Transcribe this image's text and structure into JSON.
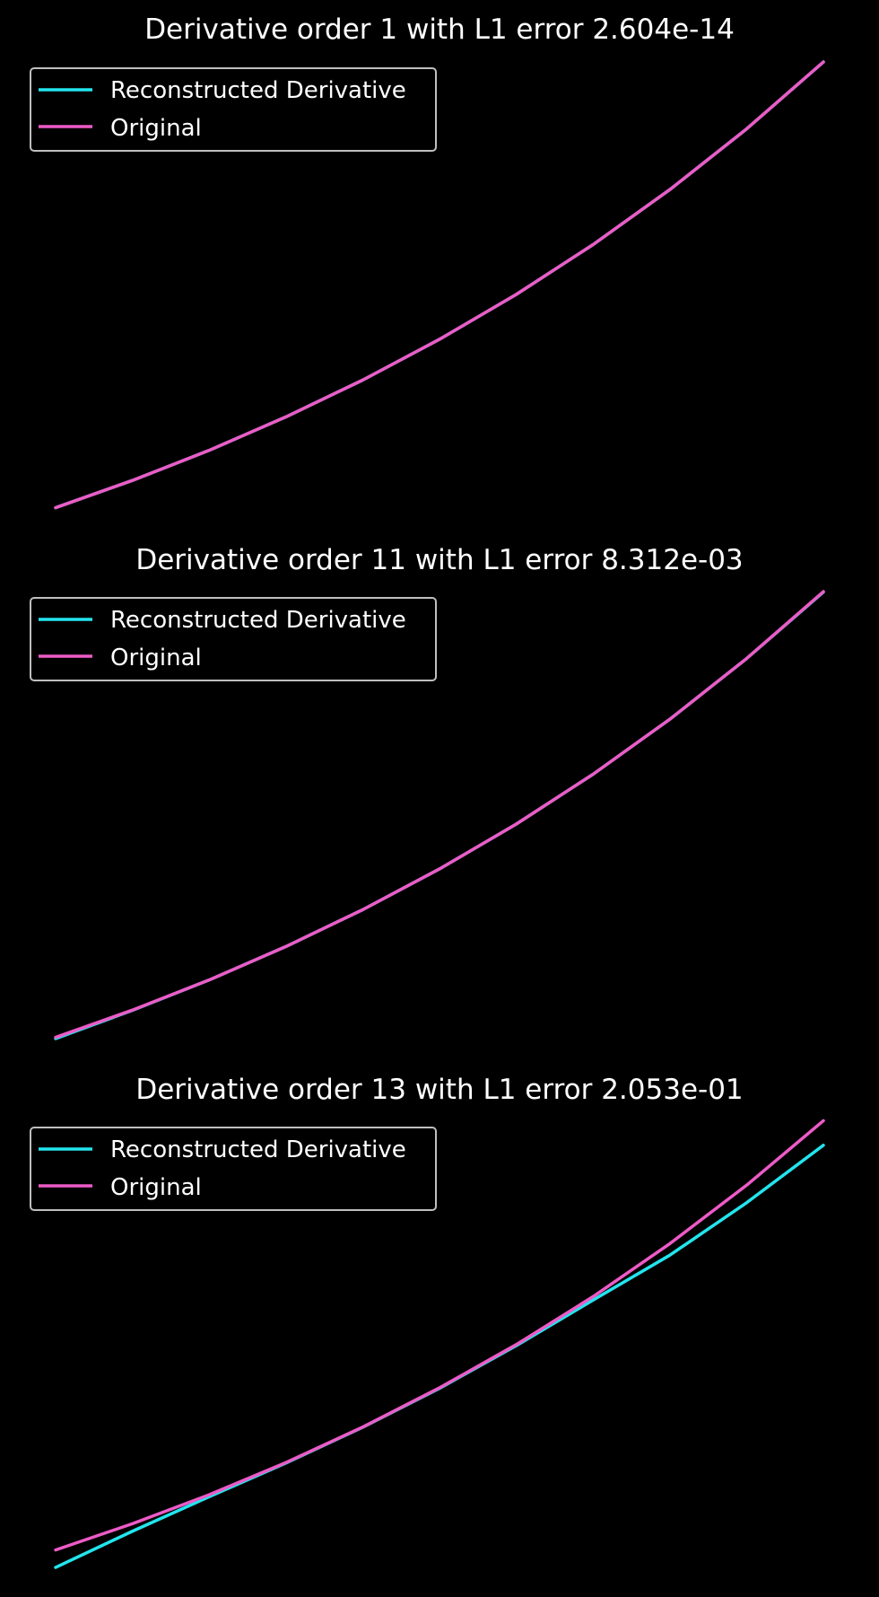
{
  "colors": {
    "background": "#000000",
    "text": "#ffffff",
    "legend_border": "#bfbfbf",
    "reconstructed": "#22e5ee",
    "original": "#ec5bc6"
  },
  "chart_data": [
    {
      "type": "line",
      "title": "Derivative order 1 with L1 error 2.604e-14",
      "xlabel": "",
      "ylabel": "",
      "axes_visible": false,
      "grid": false,
      "legend_position": "top-left",
      "xlim": [
        0,
        1
      ],
      "ylim": [
        0.95,
        2.77
      ],
      "x": [
        0,
        0.1,
        0.2,
        0.3,
        0.4,
        0.5,
        0.6,
        0.7,
        0.8,
        0.9,
        1.0
      ],
      "series": [
        {
          "name": "Reconstructed Derivative",
          "color": "#22e5ee",
          "values": [
            1.0,
            1.105,
            1.221,
            1.35,
            1.492,
            1.649,
            1.822,
            2.014,
            2.226,
            2.46,
            2.718
          ]
        },
        {
          "name": "Original",
          "color": "#ec5bc6",
          "values": [
            1.0,
            1.105,
            1.221,
            1.35,
            1.492,
            1.649,
            1.822,
            2.014,
            2.226,
            2.46,
            2.718
          ]
        }
      ]
    },
    {
      "type": "line",
      "title": "Derivative order 11 with L1 error 8.312e-03",
      "xlabel": "",
      "ylabel": "",
      "axes_visible": false,
      "grid": false,
      "legend_position": "top-left",
      "xlim": [
        0,
        1
      ],
      "ylim": [
        0.95,
        2.77
      ],
      "x": [
        0,
        0.1,
        0.2,
        0.3,
        0.4,
        0.5,
        0.6,
        0.7,
        0.8,
        0.9,
        1.0
      ],
      "series": [
        {
          "name": "Reconstructed Derivative",
          "color": "#22e5ee",
          "values": [
            0.995,
            1.104,
            1.221,
            1.35,
            1.492,
            1.649,
            1.822,
            2.014,
            2.226,
            2.46,
            2.716
          ]
        },
        {
          "name": "Original",
          "color": "#ec5bc6",
          "values": [
            1.0,
            1.105,
            1.221,
            1.35,
            1.492,
            1.649,
            1.822,
            2.014,
            2.226,
            2.46,
            2.718
          ]
        }
      ]
    },
    {
      "type": "line",
      "title": "Derivative order 13 with L1 error 2.053e-01",
      "xlabel": "",
      "ylabel": "",
      "axes_visible": false,
      "grid": false,
      "legend_position": "top-left",
      "xlim": [
        0,
        1
      ],
      "ylim": [
        0.88,
        2.77
      ],
      "x": [
        0,
        0.1,
        0.2,
        0.3,
        0.4,
        0.5,
        0.6,
        0.7,
        0.8,
        0.9,
        1.0
      ],
      "series": [
        {
          "name": "Reconstructed Derivative",
          "color": "#22e5ee",
          "values": [
            0.93,
            1.075,
            1.213,
            1.348,
            1.491,
            1.647,
            1.818,
            2.0,
            2.18,
            2.39,
            2.62
          ]
        },
        {
          "name": "Original",
          "color": "#ec5bc6",
          "values": [
            1.0,
            1.105,
            1.221,
            1.35,
            1.492,
            1.649,
            1.822,
            2.014,
            2.226,
            2.46,
            2.718
          ]
        }
      ]
    }
  ]
}
